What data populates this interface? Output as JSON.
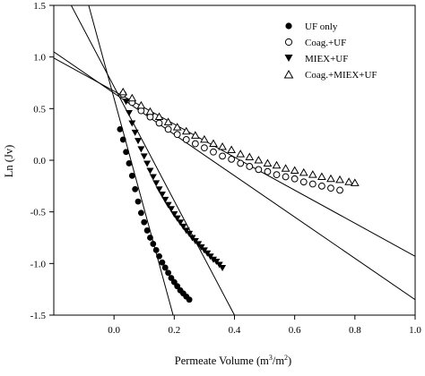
{
  "chart_data": {
    "type": "scatter",
    "xlabel": "Permeate Volume (m",
    "xlabel_sup1": "3",
    "xlabel_mid": "/m",
    "xlabel_sup2": "2",
    "xlabel_end": ")",
    "ylabel": "Ln (Jv)",
    "xlim": [
      -0.2,
      1.0
    ],
    "ylim": [
      -1.5,
      1.5
    ],
    "xticks": [
      "0.0",
      "0.2",
      "0.4",
      "0.6",
      "0.8",
      "1.0"
    ],
    "xtick_values": [
      0.0,
      0.2,
      0.4,
      0.6,
      0.8,
      1.0
    ],
    "yticks": [
      "-1.5",
      "-1.0",
      "-0.5",
      "0.0",
      "0.5",
      "1.0",
      "1.5"
    ],
    "ytick_values": [
      -1.5,
      -1.0,
      -0.5,
      0.0,
      0.5,
      1.0,
      1.5
    ],
    "legend_position": "top-right",
    "series": [
      {
        "name": "UF only",
        "marker": "filled-circle",
        "x": [
          0.02,
          0.03,
          0.04,
          0.05,
          0.06,
          0.07,
          0.08,
          0.09,
          0.1,
          0.11,
          0.12,
          0.13,
          0.14,
          0.15,
          0.16,
          0.17,
          0.18,
          0.19,
          0.2,
          0.21,
          0.22,
          0.23,
          0.24,
          0.25
        ],
        "y": [
          0.3,
          0.2,
          0.08,
          -0.03,
          -0.15,
          -0.28,
          -0.4,
          -0.51,
          -0.6,
          -0.68,
          -0.75,
          -0.81,
          -0.87,
          -0.93,
          -0.99,
          -1.04,
          -1.09,
          -1.14,
          -1.18,
          -1.22,
          -1.26,
          -1.29,
          -1.32,
          -1.35
        ]
      },
      {
        "name": "Coag.+UF",
        "marker": "open-circle",
        "x": [
          0.03,
          0.06,
          0.09,
          0.12,
          0.15,
          0.18,
          0.21,
          0.24,
          0.27,
          0.3,
          0.33,
          0.36,
          0.39,
          0.42,
          0.45,
          0.48,
          0.51,
          0.54,
          0.57,
          0.6,
          0.63,
          0.66,
          0.69,
          0.72,
          0.75
        ],
        "y": [
          0.64,
          0.56,
          0.48,
          0.42,
          0.36,
          0.3,
          0.25,
          0.2,
          0.16,
          0.12,
          0.08,
          0.04,
          0.01,
          -0.03,
          -0.06,
          -0.09,
          -0.11,
          -0.14,
          -0.16,
          -0.18,
          -0.21,
          -0.23,
          -0.25,
          -0.27,
          -0.29
        ]
      },
      {
        "name": "MIEX+UF",
        "marker": "filled-triangle-down",
        "x": [
          0.04,
          0.05,
          0.06,
          0.07,
          0.08,
          0.09,
          0.1,
          0.11,
          0.12,
          0.13,
          0.14,
          0.15,
          0.16,
          0.17,
          0.18,
          0.19,
          0.2,
          0.21,
          0.22,
          0.23,
          0.24,
          0.25,
          0.26,
          0.27,
          0.28,
          0.29,
          0.3,
          0.31,
          0.32,
          0.33,
          0.34,
          0.35,
          0.36
        ],
        "y": [
          0.57,
          0.46,
          0.36,
          0.27,
          0.19,
          0.11,
          0.04,
          -0.03,
          -0.1,
          -0.16,
          -0.22,
          -0.28,
          -0.33,
          -0.38,
          -0.43,
          -0.47,
          -0.52,
          -0.56,
          -0.6,
          -0.64,
          -0.68,
          -0.71,
          -0.75,
          -0.78,
          -0.81,
          -0.84,
          -0.87,
          -0.9,
          -0.93,
          -0.96,
          -0.98,
          -1.01,
          -1.04
        ]
      },
      {
        "name": "Coag.+MIEX+UF",
        "marker": "open-triangle-up",
        "x": [
          0.03,
          0.06,
          0.09,
          0.12,
          0.15,
          0.18,
          0.21,
          0.24,
          0.27,
          0.3,
          0.33,
          0.36,
          0.39,
          0.42,
          0.45,
          0.48,
          0.51,
          0.54,
          0.57,
          0.6,
          0.63,
          0.66,
          0.69,
          0.72,
          0.75,
          0.78,
          0.8
        ],
        "y": [
          0.66,
          0.6,
          0.53,
          0.47,
          0.42,
          0.37,
          0.32,
          0.28,
          0.24,
          0.2,
          0.16,
          0.13,
          0.1,
          0.06,
          0.03,
          0.0,
          -0.03,
          -0.05,
          -0.08,
          -0.1,
          -0.12,
          -0.14,
          -0.16,
          -0.18,
          -0.19,
          -0.21,
          -0.22
        ]
      }
    ],
    "fit_lines": [
      {
        "x1": -0.2,
        "y1": 2.74,
        "x2": 0.2,
        "y2": -1.54
      },
      {
        "x1": -0.2,
        "y1": 1.82,
        "x2": 0.4,
        "y2": -1.5
      },
      {
        "x1": -0.2,
        "y1": 1.05,
        "x2": 1.0,
        "y2": -1.35
      },
      {
        "x1": -0.2,
        "y1": 0.99,
        "x2": 1.0,
        "y2": -0.93
      }
    ]
  }
}
